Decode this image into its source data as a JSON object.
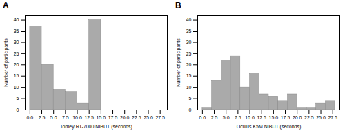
{
  "chart_data": [
    {
      "type": "histogram",
      "title": "A",
      "x_label": "Tomey RT-7000 NIBUT (seconds)",
      "y_label": "Number of participants",
      "bins": [
        0.0,
        2.5,
        5.0,
        7.5,
        10.0,
        12.5,
        15.0,
        17.5,
        20.0,
        22.5,
        25.0,
        27.5
      ],
      "counts": [
        37,
        20,
        9,
        8,
        3,
        40,
        0,
        0,
        0,
        0,
        0
      ],
      "color": "#aaaaaa",
      "xlim": [
        -1.0,
        29.0
      ],
      "ylim": [
        0,
        42
      ],
      "xticks": [
        {
          "value": 0,
          "label": "0.0"
        },
        2.5,
        {
          "value": 5,
          "label": "5.0"
        },
        7.5,
        {
          "value": 10,
          "label": "10.0"
        },
        12.5,
        {
          "value": 15,
          "label": "15.0"
        },
        17.5,
        {
          "value": 20,
          "label": "20.0"
        },
        22.5,
        {
          "value": 25,
          "label": "25.0"
        },
        27.5
      ],
      "yticks": [
        0,
        5,
        10,
        15,
        20,
        25,
        30,
        35,
        40
      ],
      "grid": false
    },
    {
      "type": "histogram",
      "title": "B",
      "x_label": "Oculus K5M NIBUT (seconds)",
      "y_label": "Number of participants",
      "bins": [
        0,
        2,
        4,
        6,
        8,
        10,
        12,
        14,
        16,
        18,
        20,
        22,
        24,
        26,
        28
      ],
      "counts": [
        1,
        13,
        22,
        24,
        10,
        16,
        7,
        6,
        4,
        7,
        1,
        1,
        3,
        4
      ],
      "color": "#aaaaaa",
      "xlim": [
        -1.0,
        29.0
      ],
      "ylim": [
        0,
        42
      ],
      "xticks": [
        {
          "value": 0,
          "label": "0.0"
        },
        2.5,
        {
          "value": 5,
          "label": "5.0"
        },
        7.5,
        {
          "value": 10,
          "label": "10.0"
        },
        12.5,
        {
          "value": 15,
          "label": "15.0"
        },
        17.5,
        {
          "value": 20,
          "label": "20.0"
        },
        22.5,
        {
          "value": 25,
          "label": "25.0"
        },
        27.5
      ],
      "yticks": [
        0,
        5,
        10,
        15,
        20,
        25,
        30,
        35,
        40
      ],
      "grid": false
    }
  ]
}
